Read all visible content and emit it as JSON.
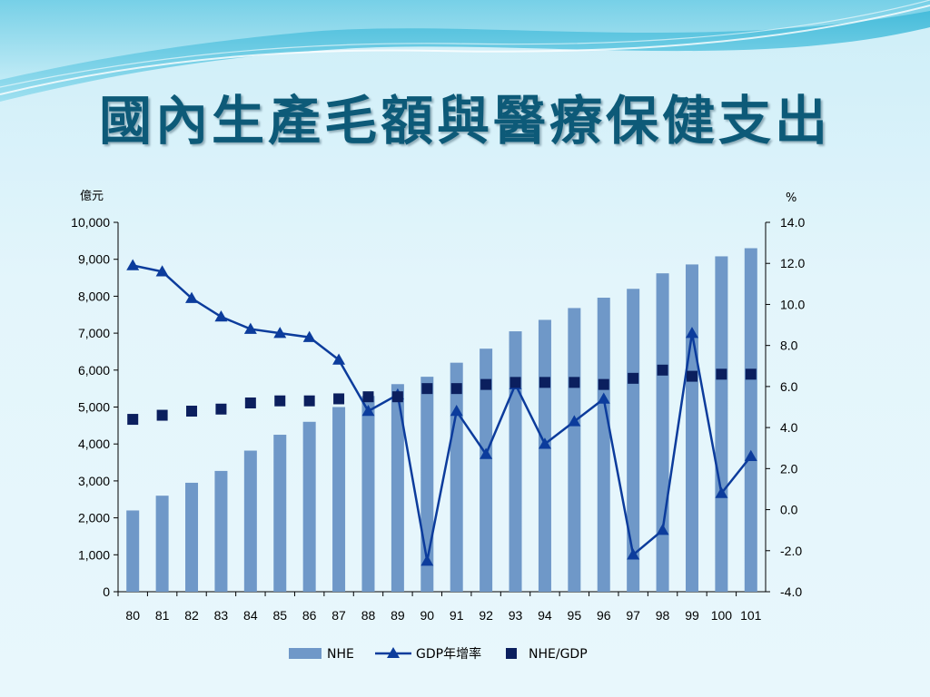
{
  "title": "國內生產毛額與醫療保健支出",
  "chart_data": {
    "type": "bar",
    "categories": [
      "80",
      "81",
      "82",
      "83",
      "84",
      "85",
      "86",
      "87",
      "88",
      "89",
      "90",
      "91",
      "92",
      "93",
      "94",
      "95",
      "96",
      "97",
      "98",
      "99",
      "100",
      "101"
    ],
    "left_axis": {
      "unit": "億元",
      "ylim": [
        0,
        10000
      ],
      "ticks": [
        "0",
        "1,000",
        "2,000",
        "3,000",
        "4,000",
        "5,000",
        "6,000",
        "7,000",
        "8,000",
        "9,000",
        "10,000"
      ]
    },
    "right_axis": {
      "unit": "%",
      "ylim": [
        -4,
        14
      ],
      "ticks": [
        "-4.0",
        "-2.0",
        "0.0",
        "2.0",
        "4.0",
        "6.0",
        "8.0",
        "10.0",
        "12.0",
        "14.0"
      ]
    },
    "series": [
      {
        "name": "NHE",
        "kind": "bar",
        "axis": "left",
        "color": "#6f98c8",
        "values": [
          2200,
          2600,
          2950,
          3270,
          3820,
          4250,
          4600,
          5000,
          5300,
          5620,
          5820,
          6200,
          6580,
          7050,
          7360,
          7680,
          7960,
          8200,
          8620,
          8860,
          9080,
          9300
        ]
      },
      {
        "name": "GDP年增率",
        "kind": "line",
        "axis": "right",
        "color": "#0c3c9c",
        "values": [
          11.9,
          11.6,
          10.3,
          9.4,
          8.8,
          8.6,
          8.4,
          7.3,
          4.8,
          5.6,
          -2.5,
          4.8,
          2.7,
          6.1,
          3.2,
          4.3,
          5.4,
          -2.2,
          -1.0,
          8.6,
          0.8,
          2.6
        ]
      },
      {
        "name": "NHE/GDP",
        "kind": "marker",
        "axis": "right",
        "color": "#0b1f5e",
        "values": [
          4.4,
          4.6,
          4.8,
          4.9,
          5.2,
          5.3,
          5.3,
          5.4,
          5.5,
          5.5,
          5.9,
          5.9,
          6.1,
          6.2,
          6.2,
          6.2,
          6.1,
          6.4,
          6.8,
          6.5,
          6.6,
          6.6
        ]
      }
    ],
    "legend_position": "bottom"
  }
}
